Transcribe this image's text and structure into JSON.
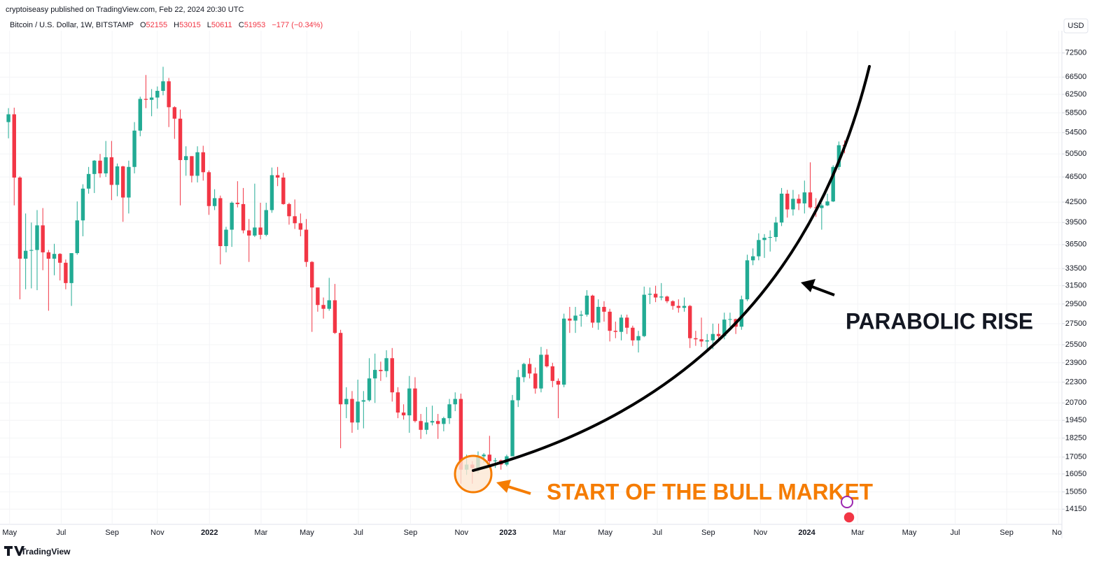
{
  "published": "cryptoiseasy published on TradingView.com, Feb 22, 2024 20:30 UTC",
  "brand": "TradingView",
  "chart_data": {
    "type": "candlestick",
    "symbol": "Bitcoin / U.S. Dollar, 1W, BITSTAMP",
    "legend_labels": [
      "O",
      "H",
      "L",
      "C"
    ],
    "change": "−177 (−0.34%)",
    "currency": "USD",
    "annotations": [
      "PARABOLIC RISE",
      "START OF THE BULL MARKET"
    ],
    "up_color": "#22ab94",
    "down_color": "#f23645",
    "log_scale": true,
    "grid": true,
    "ylim": [
      13400,
      78500
    ],
    "yticks": [
      14150,
      15050,
      16050,
      17050,
      18250,
      19450,
      20700,
      22300,
      23900,
      25500,
      27500,
      29500,
      31500,
      33500,
      36500,
      39500,
      42500,
      46500,
      50500,
      54500,
      58500,
      62500,
      66500,
      72500
    ],
    "xlim": [
      -0.5,
      183.7
    ],
    "xticks": [
      {
        "value": 0.2,
        "label": "May"
      },
      {
        "value": 9.2,
        "label": "Jul"
      },
      {
        "value": 18.1,
        "label": "Sep"
      },
      {
        "value": 26.0,
        "label": "Nov"
      },
      {
        "value": 35.1,
        "label": "2022"
      },
      {
        "value": 44.1,
        "label": "Mar"
      },
      {
        "value": 52.1,
        "label": "May"
      },
      {
        "value": 61.1,
        "label": "Jul"
      },
      {
        "value": 70.2,
        "label": "Sep"
      },
      {
        "value": 79.1,
        "label": "Nov"
      },
      {
        "value": 87.2,
        "label": "2023"
      },
      {
        "value": 96.2,
        "label": "Mar"
      },
      {
        "value": 104.2,
        "label": "May"
      },
      {
        "value": 113.3,
        "label": "Jul"
      },
      {
        "value": 122.2,
        "label": "Sep"
      },
      {
        "value": 131.3,
        "label": "Nov"
      },
      {
        "value": 139.4,
        "label": "2024"
      },
      {
        "value": 148.3,
        "label": "Mar"
      },
      {
        "value": 157.3,
        "label": "May"
      },
      {
        "value": 165.3,
        "label": "Jul"
      },
      {
        "value": 174.3,
        "label": "Sep"
      },
      {
        "value": 183.4,
        "label": "Nov"
      }
    ],
    "ohlc": [
      [
        56600,
        59500,
        53400,
        58200
      ],
      [
        58200,
        59600,
        42000,
        46400
      ],
      [
        46400,
        46600,
        30000,
        34700
      ],
      [
        34700,
        40800,
        31100,
        35700
      ],
      [
        35700,
        39500,
        31200,
        35800
      ],
      [
        35800,
        41300,
        31000,
        39100
      ],
      [
        39100,
        41600,
        33300,
        35500
      ],
      [
        35500,
        35800,
        28800,
        34700
      ],
      [
        34700,
        36600,
        32700,
        35300
      ],
      [
        35300,
        35400,
        32100,
        34200
      ],
      [
        34200,
        34600,
        31100,
        31800
      ],
      [
        31800,
        35400,
        29300,
        35400
      ],
      [
        35400,
        42600,
        35200,
        39800
      ],
      [
        39800,
        45300,
        37600,
        44600
      ],
      [
        44600,
        48200,
        43800,
        47000
      ],
      [
        47000,
        49400,
        43900,
        49300
      ],
      [
        49300,
        50500,
        46400,
        47100
      ],
      [
        47100,
        52900,
        46500,
        49900
      ],
      [
        49900,
        52900,
        42800,
        45200
      ],
      [
        45200,
        48800,
        43400,
        48300
      ],
      [
        48300,
        48400,
        39600,
        43200
      ],
      [
        43200,
        49300,
        40800,
        48200
      ],
      [
        48200,
        56600,
        47100,
        54900
      ],
      [
        54900,
        62000,
        53800,
        61500
      ],
      [
        61500,
        67000,
        59500,
        61300
      ],
      [
        61300,
        63700,
        57800,
        61800
      ],
      [
        61800,
        64300,
        59400,
        63300
      ],
      [
        63300,
        69000,
        62300,
        65500
      ],
      [
        65500,
        66300,
        55600,
        59700
      ],
      [
        59700,
        59900,
        53300,
        57300
      ],
      [
        57300,
        59200,
        42000,
        49400
      ],
      [
        49400,
        51900,
        46700,
        50100
      ],
      [
        50100,
        50100,
        45600,
        46700
      ],
      [
        46700,
        51900,
        45600,
        50800
      ],
      [
        50800,
        52000,
        45900,
        47300
      ],
      [
        47300,
        47600,
        40600,
        41900
      ],
      [
        41900,
        44500,
        41300,
        43100
      ],
      [
        43100,
        43500,
        34000,
        36300
      ],
      [
        36300,
        38900,
        35500,
        38500
      ],
      [
        38500,
        42600,
        36200,
        42400
      ],
      [
        42400,
        45800,
        41700,
        42200
      ],
      [
        42200,
        44700,
        38000,
        38400
      ],
      [
        38400,
        40000,
        34300,
        37700
      ],
      [
        37700,
        45400,
        37500,
        38800
      ],
      [
        38800,
        42400,
        37200,
        37800
      ],
      [
        37800,
        42400,
        37600,
        41300
      ],
      [
        41300,
        48100,
        40900,
        46800
      ],
      [
        46800,
        48200,
        45000,
        46400
      ],
      [
        46400,
        47200,
        42100,
        42200
      ],
      [
        42200,
        42400,
        39200,
        40400
      ],
      [
        40400,
        42900,
        38600,
        39400
      ],
      [
        39400,
        40800,
        37600,
        38500
      ],
      [
        38500,
        40000,
        33700,
        34300
      ],
      [
        34300,
        34400,
        26700,
        31300
      ],
      [
        31300,
        31300,
        28700,
        29400
      ],
      [
        29400,
        30200,
        28000,
        29000
      ],
      [
        29000,
        32400,
        28800,
        29900
      ],
      [
        29900,
        31700,
        26500,
        26600
      ],
      [
        26600,
        26900,
        17600,
        20600
      ],
      [
        20600,
        21900,
        19600,
        21000
      ],
      [
        21000,
        21600,
        18600,
        19300
      ],
      [
        19300,
        22500,
        18800,
        20800
      ],
      [
        20800,
        21600,
        18900,
        20900
      ],
      [
        20900,
        24300,
        20800,
        22600
      ],
      [
        22600,
        24700,
        20700,
        23300
      ],
      [
        23300,
        24000,
        22400,
        23200
      ],
      [
        23200,
        25000,
        22700,
        24300
      ],
      [
        24300,
        25200,
        20800,
        21500
      ],
      [
        21500,
        21900,
        19600,
        20000
      ],
      [
        20000,
        20600,
        19500,
        19800
      ],
      [
        19800,
        22800,
        18600,
        21800
      ],
      [
        21800,
        22700,
        19300,
        19400
      ],
      [
        19400,
        19900,
        18200,
        18800
      ],
      [
        18800,
        20400,
        18500,
        19300
      ],
      [
        19300,
        20500,
        19100,
        19400
      ],
      [
        19400,
        19900,
        18200,
        19200
      ],
      [
        19200,
        19700,
        18700,
        19600
      ],
      [
        19600,
        21000,
        19200,
        20600
      ],
      [
        20600,
        21500,
        20100,
        21000
      ],
      [
        21000,
        21400,
        15500,
        16300
      ],
      [
        16300,
        17200,
        16000,
        16600
      ],
      [
        16600,
        16800,
        15500,
        16400
      ],
      [
        16400,
        17400,
        16100,
        17100
      ],
      [
        17100,
        17300,
        16700,
        17200
      ],
      [
        17200,
        18400,
        16500,
        16800
      ],
      [
        16800,
        17000,
        16400,
        16850
      ],
      [
        16850,
        16900,
        16300,
        16600
      ],
      [
        16600,
        17200,
        16500,
        17100
      ],
      [
        17100,
        21300,
        17100,
        20900
      ],
      [
        20900,
        23300,
        20400,
        22700
      ],
      [
        22700,
        23900,
        22300,
        23800
      ],
      [
        23800,
        24300,
        22600,
        23000
      ],
      [
        23000,
        23500,
        21400,
        21800
      ],
      [
        21800,
        25300,
        21500,
        24600
      ],
      [
        24600,
        25100,
        23500,
        23600
      ],
      [
        23600,
        23900,
        21900,
        22400
      ],
      [
        22400,
        22600,
        19600,
        22100
      ],
      [
        22100,
        28500,
        21900,
        28000
      ],
      [
        28000,
        29200,
        26600,
        27800
      ],
      [
        27800,
        29200,
        26600,
        28300
      ],
      [
        28300,
        28800,
        27200,
        28400
      ],
      [
        28400,
        31000,
        28200,
        30400
      ],
      [
        30400,
        30500,
        27100,
        27600
      ],
      [
        27600,
        30000,
        26900,
        29200
      ],
      [
        29200,
        29800,
        27700,
        28700
      ],
      [
        28700,
        29000,
        25800,
        26800
      ],
      [
        26800,
        27700,
        26100,
        26700
      ],
      [
        26700,
        28400,
        25900,
        28100
      ],
      [
        28100,
        28400,
        26500,
        27100
      ],
      [
        27100,
        27300,
        25400,
        25900
      ],
      [
        25900,
        26800,
        24800,
        26300
      ],
      [
        26300,
        31400,
        26200,
        30500
      ],
      [
        30500,
        31300,
        29500,
        30600
      ],
      [
        30600,
        31500,
        29700,
        30200
      ],
      [
        30200,
        31800,
        29900,
        30300
      ],
      [
        30300,
        30400,
        29600,
        29800
      ],
      [
        29800,
        29900,
        28900,
        29300
      ],
      [
        29300,
        30000,
        28600,
        29100
      ],
      [
        29100,
        30200,
        28700,
        29300
      ],
      [
        29300,
        29400,
        25200,
        26100
      ],
      [
        26100,
        26800,
        25400,
        26000
      ],
      [
        26000,
        28100,
        25300,
        25800
      ],
      [
        25800,
        26500,
        24900,
        25900
      ],
      [
        25900,
        27500,
        25100,
        26500
      ],
      [
        26500,
        27500,
        26000,
        26300
      ],
      [
        26300,
        28600,
        26000,
        27900
      ],
      [
        27900,
        28600,
        27200,
        27950
      ],
      [
        27950,
        28000,
        26500,
        27200
      ],
      [
        27200,
        30400,
        26900,
        30000
      ],
      [
        30000,
        35200,
        29800,
        34500
      ],
      [
        34500,
        36000,
        33900,
        35000
      ],
      [
        35000,
        38000,
        34500,
        37100
      ],
      [
        37100,
        37900,
        34800,
        37400
      ],
      [
        37400,
        38400,
        35600,
        37500
      ],
      [
        37500,
        40300,
        36900,
        39500
      ],
      [
        39500,
        44700,
        39000,
        43800
      ],
      [
        43800,
        44400,
        40200,
        41400
      ],
      [
        41400,
        44400,
        40500,
        43000
      ],
      [
        43000,
        43700,
        41300,
        42300
      ],
      [
        42300,
        45900,
        40800,
        44000
      ],
      [
        44000,
        49000,
        41500,
        41700
      ],
      [
        41700,
        43100,
        40300,
        41600
      ],
      [
        41600,
        42300,
        38500,
        42000
      ],
      [
        42000,
        43800,
        41900,
        42600
      ],
      [
        42600,
        48500,
        42500,
        48200
      ],
      [
        48200,
        52800,
        47700,
        52100
      ],
      [
        52155,
        53015,
        50611,
        51953
      ]
    ]
  }
}
